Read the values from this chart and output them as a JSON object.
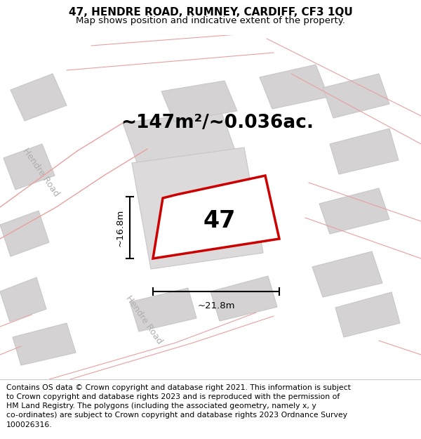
{
  "title": "47, HENDRE ROAD, RUMNEY, CARDIFF, CF3 1QU",
  "subtitle": "Map shows position and indicative extent of the property.",
  "area_text": "~147m²/~0.036ac.",
  "plot_number": "47",
  "dim_width": "~21.8m",
  "dim_height": "~16.8m",
  "road_label_1": "Hendre Road",
  "road_label_2": "Hendre Road",
  "footer": "Contains OS data © Crown copyright and database right 2021. This information is subject\nto Crown copyright and database rights 2023 and is reproduced with the permission of\nHM Land Registry. The polygons (including the associated geometry, namely x, y\nco-ordinates) are subject to Crown copyright and database rights 2023 Ordnance Survey\n100026316.",
  "map_bg": "#eeecec",
  "building_color": "#d4d2d2",
  "building_edge": "#c8c6c6",
  "road_line_color": "#e8a0a0",
  "plot_line_color": "#cc0000",
  "plot_fill_color": "#ffffff",
  "dim_line_color": "#000000",
  "title_fontsize": 11,
  "subtitle_fontsize": 9.5,
  "area_fontsize": 19,
  "plot_num_fontsize": 24,
  "road_label_fontsize": 9,
  "footer_fontsize": 7.8,
  "dim_fontsize": 9.5
}
